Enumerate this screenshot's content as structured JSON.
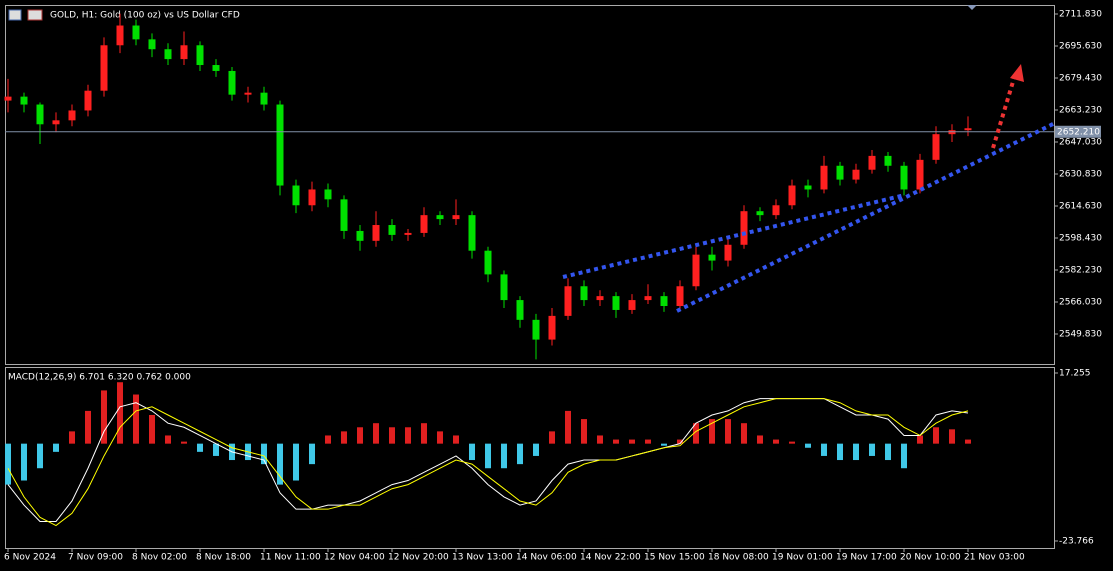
{
  "chart_data": [
    {
      "type": "candlestick",
      "title": "GOLD, H1:  Gold (100 oz) vs US Dollar CFD",
      "up_color": "#ff2020",
      "down_color": "#00e000",
      "categories": [
        "6 Nov 2024",
        null,
        null,
        null,
        "7 Nov 09:00",
        null,
        null,
        null,
        "8 Nov 02:00",
        null,
        null,
        null,
        "8 Nov 18:00",
        null,
        null,
        null,
        "11 Nov 11:00",
        null,
        null,
        null,
        "12 Nov 04:00",
        null,
        null,
        null,
        "12 Nov 20:00",
        null,
        null,
        null,
        "13 Nov 13:00",
        null,
        null,
        null,
        "14 Nov 06:00",
        null,
        null,
        null,
        "14 Nov 22:00",
        null,
        null,
        null,
        "15 Nov 15:00",
        null,
        null,
        null,
        "18 Nov 08:00",
        null,
        null,
        null,
        "19 Nov 01:00",
        null,
        null,
        null,
        "19 Nov 17:00",
        null,
        null,
        null,
        "20 Nov 10:00",
        null,
        null,
        null,
        "21 Nov 03:00"
      ],
      "open": [
        2668,
        2670,
        2666,
        2656,
        2658,
        2663,
        2673,
        2696,
        2706,
        2699,
        2694,
        2689,
        2696,
        2686,
        2683,
        2671,
        2672,
        2666,
        2625,
        2615,
        2623,
        2618,
        2602,
        2597,
        2605,
        2600,
        2601,
        2610,
        2608,
        2610,
        2592,
        2580,
        2567,
        2557,
        2547,
        2559,
        2574,
        2567,
        2569,
        2562,
        2567,
        2569,
        2564,
        2574,
        2590,
        2587,
        2595,
        2612,
        2610,
        2615,
        2625,
        2623,
        2635,
        2628,
        2633,
        2640,
        2635,
        2623,
        2638,
        2651,
        2653
      ],
      "high": [
        2679,
        2672,
        2667,
        2662,
        2666,
        2676,
        2700,
        2712,
        2709,
        2702,
        2697,
        2703,
        2698,
        2689,
        2685,
        2675,
        2675,
        2668,
        2628,
        2627,
        2626,
        2620,
        2605,
        2612,
        2608,
        2603,
        2614,
        2612,
        2618,
        2612,
        2594,
        2582,
        2569,
        2560,
        2563,
        2578,
        2577,
        2572,
        2571,
        2570,
        2575,
        2571,
        2577,
        2594,
        2594,
        2599,
        2615,
        2614,
        2618,
        2628,
        2628,
        2640,
        2637,
        2636,
        2643,
        2642,
        2637,
        2641,
        2655,
        2656,
        2660
      ],
      "low": [
        2662,
        2662,
        2646,
        2652,
        2655,
        2660,
        2670,
        2692,
        2696,
        2690,
        2686,
        2686,
        2683,
        2680,
        2668,
        2667,
        2663,
        2620,
        2611,
        2612,
        2614,
        2598,
        2592,
        2594,
        2597,
        2597,
        2599,
        2605,
        2605,
        2588,
        2576,
        2563,
        2553,
        2537,
        2544,
        2557,
        2564,
        2564,
        2558,
        2560,
        2565,
        2561,
        2562,
        2572,
        2582,
        2584,
        2593,
        2607,
        2608,
        2613,
        2619,
        2621,
        2625,
        2626,
        2631,
        2632,
        2620,
        2621,
        2636,
        2647,
        2650
      ],
      "close": [
        2670,
        2666,
        2656,
        2658,
        2663,
        2673,
        2696,
        2706,
        2699,
        2694,
        2689,
        2696,
        2686,
        2683,
        2671,
        2672,
        2666,
        2625,
        2615,
        2623,
        2618,
        2602,
        2597,
        2605,
        2600,
        2601,
        2610,
        2608,
        2610,
        2592,
        2580,
        2567,
        2557,
        2547,
        2559,
        2574,
        2567,
        2569,
        2562,
        2567,
        2569,
        2564,
        2574,
        2590,
        2587,
        2595,
        2612,
        2610,
        2615,
        2625,
        2623,
        2635,
        2628,
        2633,
        2640,
        2635,
        2623,
        2638,
        2651,
        2653,
        2654
      ],
      "ylim": [
        2534.64,
        2716.39
      ],
      "yticks": [
        {
          "value": 2711.83,
          "label": "2711.830"
        },
        {
          "value": 2695.63,
          "label": "2695.630"
        },
        {
          "value": 2679.43,
          "label": "2679.430"
        },
        {
          "value": 2663.23,
          "label": "2663.230"
        },
        {
          "value": 2647.03,
          "label": "2647.030"
        },
        {
          "value": 2630.83,
          "label": "2630.830"
        },
        {
          "value": 2614.63,
          "label": "2614.630"
        },
        {
          "value": 2598.43,
          "label": "2598.430"
        },
        {
          "value": 2582.23,
          "label": "2582.230"
        },
        {
          "value": 2566.03,
          "label": "2566.030"
        },
        {
          "value": 2549.83,
          "label": "2549.830"
        }
      ],
      "last_price": {
        "value": 2652.21,
        "label": "2652.210"
      }
    },
    {
      "type": "macd",
      "title": "MACD(12,26,9) 6.701 6.320 0.762 0.000",
      "histogram": {
        "pos_color": "#e02020",
        "neg_color": "#40c8e8",
        "values": [
          -10,
          -9,
          -6,
          -2,
          3,
          8,
          13,
          15,
          12,
          7,
          2,
          0.5,
          -2,
          -3,
          -4,
          -4,
          -5,
          -10,
          -9,
          -5,
          2,
          3,
          4,
          5,
          4,
          4,
          5,
          3,
          2,
          -4,
          -6,
          -6,
          -5,
          -3,
          3,
          8,
          6,
          2,
          1,
          1,
          1,
          -0.5,
          1,
          5,
          6,
          6,
          5,
          2,
          1,
          0.5,
          -1,
          -3,
          -4,
          -4,
          -3,
          -4,
          -6,
          2,
          4,
          3.5,
          1
        ]
      },
      "macd_line": {
        "color": "#ffffff",
        "values": [
          -10,
          -15,
          -19,
          -19,
          -14,
          -6,
          3,
          9,
          10,
          8,
          5,
          4,
          2,
          0,
          -2,
          -3,
          -4,
          -12,
          -16,
          -16,
          -15,
          -15,
          -14,
          -12,
          -10,
          -9,
          -7,
          -5,
          -3,
          -6,
          -10,
          -13,
          -15,
          -14,
          -9,
          -5,
          -4,
          -4,
          -4,
          -3,
          -2,
          -1,
          0,
          5,
          7,
          8,
          10,
          11,
          11,
          11,
          11,
          11,
          9,
          7,
          7,
          6,
          2,
          2,
          7,
          8,
          7.5
        ]
      },
      "signal_line": {
        "color": "#ffff00",
        "values": [
          -6,
          -13,
          -18,
          -20,
          -17,
          -11,
          -3,
          4,
          8,
          9,
          7,
          5,
          3,
          1,
          -1,
          -2,
          -3,
          -8,
          -13,
          -16,
          -16,
          -15,
          -15,
          -13,
          -11,
          -10,
          -8,
          -6,
          -4,
          -5,
          -8,
          -11,
          -14,
          -15,
          -12,
          -7,
          -5,
          -4,
          -4,
          -3,
          -2,
          -1,
          -0.5,
          3,
          5,
          7,
          9,
          10,
          11,
          11,
          11,
          11,
          10,
          8,
          7,
          7,
          4,
          2,
          5,
          7,
          8
        ]
      },
      "ylim": [
        -25.48,
        18.72
      ],
      "yticks": [
        17.255,
        -23.766
      ]
    }
  ]
}
